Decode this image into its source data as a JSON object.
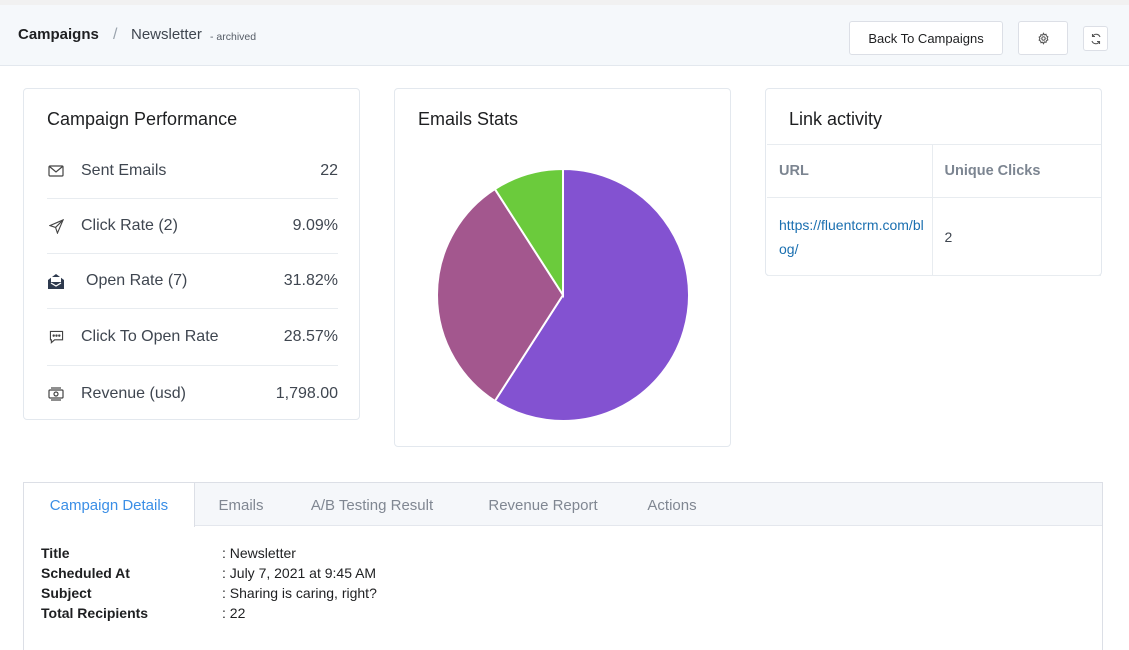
{
  "breadcrumb": {
    "root": "Campaigns",
    "separator": "/",
    "current": "Newsletter",
    "status": "- archived"
  },
  "header_buttons": {
    "back_label": "Back To Campaigns",
    "settings_icon": "gear-icon",
    "refresh_icon": "refresh-icon"
  },
  "performance": {
    "title": "Campaign Performance",
    "rows": [
      {
        "icon": "envelope-icon",
        "label": "Sent Emails",
        "value": "22"
      },
      {
        "icon": "send-icon",
        "label": "Click Rate (2)",
        "value": "9.09%"
      },
      {
        "icon": "open-envelope-icon",
        "label": "Open Rate (7)",
        "value": "31.82%"
      },
      {
        "icon": "chat-icon",
        "label": "Click To Open Rate",
        "value": "28.57%"
      },
      {
        "icon": "money-icon",
        "label": "Revenue (usd)",
        "value": "1,798.00"
      }
    ]
  },
  "emails_stats": {
    "title": "Emails Stats",
    "chart_data": {
      "type": "pie",
      "slices": [
        {
          "value": 13,
          "color": "#8352d1"
        },
        {
          "value": 7,
          "color": "#a3578e"
        },
        {
          "value": 2,
          "color": "#6bcb3c"
        }
      ]
    }
  },
  "link_activity": {
    "title": "Link activity",
    "columns": [
      "URL",
      "Unique Clicks"
    ],
    "rows": [
      {
        "url": "https://fluentcrm.com/blog/",
        "clicks": "2"
      }
    ]
  },
  "tabs": [
    {
      "label": "Campaign Details",
      "active": true
    },
    {
      "label": "Emails",
      "active": false
    },
    {
      "label": "A/B Testing Result",
      "active": false
    },
    {
      "label": "Revenue Report",
      "active": false
    },
    {
      "label": "Actions",
      "active": false
    }
  ],
  "details": [
    {
      "key": "Title",
      "value": ": Newsletter"
    },
    {
      "key": "Scheduled At",
      "value": ": July 7, 2021 at 9:45 AM"
    },
    {
      "key": "Subject",
      "value": ": Sharing is caring, right?"
    },
    {
      "key": "Total Recipients",
      "value": ": 22"
    }
  ]
}
